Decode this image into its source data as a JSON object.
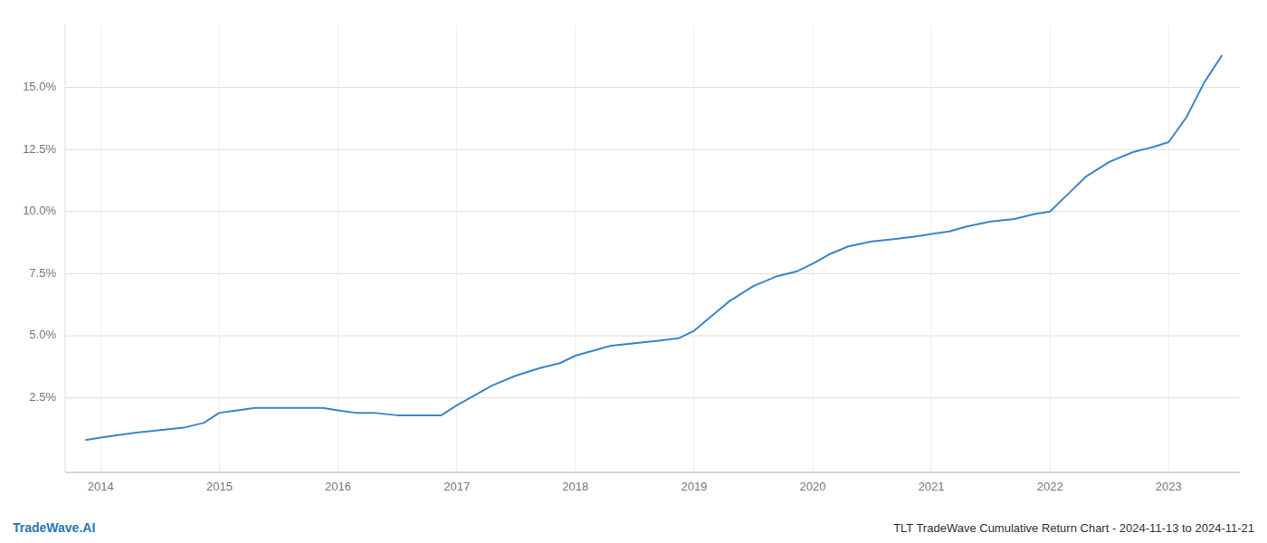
{
  "chart_data": {
    "type": "line",
    "title": "TLT TradeWave Cumulative Return Chart - 2024-11-13 to 2024-11-21",
    "annotations": [
      "TradeWave.AI"
    ],
    "color": "#3a86c8",
    "grid": true,
    "x": [
      2013.87,
      2014.0,
      2014.15,
      2014.3,
      2014.5,
      2014.7,
      2014.87,
      2015.0,
      2015.15,
      2015.3,
      2015.5,
      2015.7,
      2015.87,
      2016.0,
      2016.15,
      2016.3,
      2016.5,
      2016.7,
      2016.87,
      2017.0,
      2017.15,
      2017.3,
      2017.5,
      2017.7,
      2017.87,
      2018.0,
      2018.15,
      2018.3,
      2018.5,
      2018.7,
      2018.87,
      2019.0,
      2019.15,
      2019.3,
      2019.5,
      2019.7,
      2019.87,
      2020.0,
      2020.15,
      2020.3,
      2020.5,
      2020.7,
      2020.87,
      2021.0,
      2021.15,
      2021.3,
      2021.5,
      2021.7,
      2021.87,
      2022.0,
      2022.15,
      2022.3,
      2022.5,
      2022.7,
      2022.87,
      2023.0,
      2023.15,
      2023.3,
      2023.45
    ],
    "values": [
      0.008,
      0.009,
      0.01,
      0.011,
      0.012,
      0.013,
      0.015,
      0.019,
      0.02,
      0.021,
      0.021,
      0.021,
      0.021,
      0.02,
      0.019,
      0.019,
      0.018,
      0.018,
      0.018,
      0.022,
      0.026,
      0.03,
      0.034,
      0.037,
      0.039,
      0.042,
      0.044,
      0.046,
      0.047,
      0.048,
      0.049,
      0.052,
      0.058,
      0.064,
      0.07,
      0.074,
      0.076,
      0.079,
      0.083,
      0.086,
      0.088,
      0.089,
      0.09,
      0.091,
      0.092,
      0.094,
      0.096,
      0.097,
      0.099,
      0.1,
      0.107,
      0.114,
      0.12,
      0.124,
      0.126,
      0.128,
      0.138,
      0.152,
      0.163
    ],
    "xlim": [
      2013.7,
      2023.6
    ],
    "ylim": [
      -0.005,
      0.175
    ],
    "xticks": [
      2014,
      2015,
      2016,
      2017,
      2018,
      2019,
      2020,
      2021,
      2022,
      2023
    ],
    "yticks": [
      {
        "value": 0.025,
        "label": "2.5%"
      },
      {
        "value": 0.05,
        "label": "5.0%"
      },
      {
        "value": 0.075,
        "label": "7.5%"
      },
      {
        "value": 0.1,
        "label": "10.0%"
      },
      {
        "value": 0.125,
        "label": "12.5%"
      },
      {
        "value": 0.15,
        "label": "15.0%"
      }
    ]
  }
}
